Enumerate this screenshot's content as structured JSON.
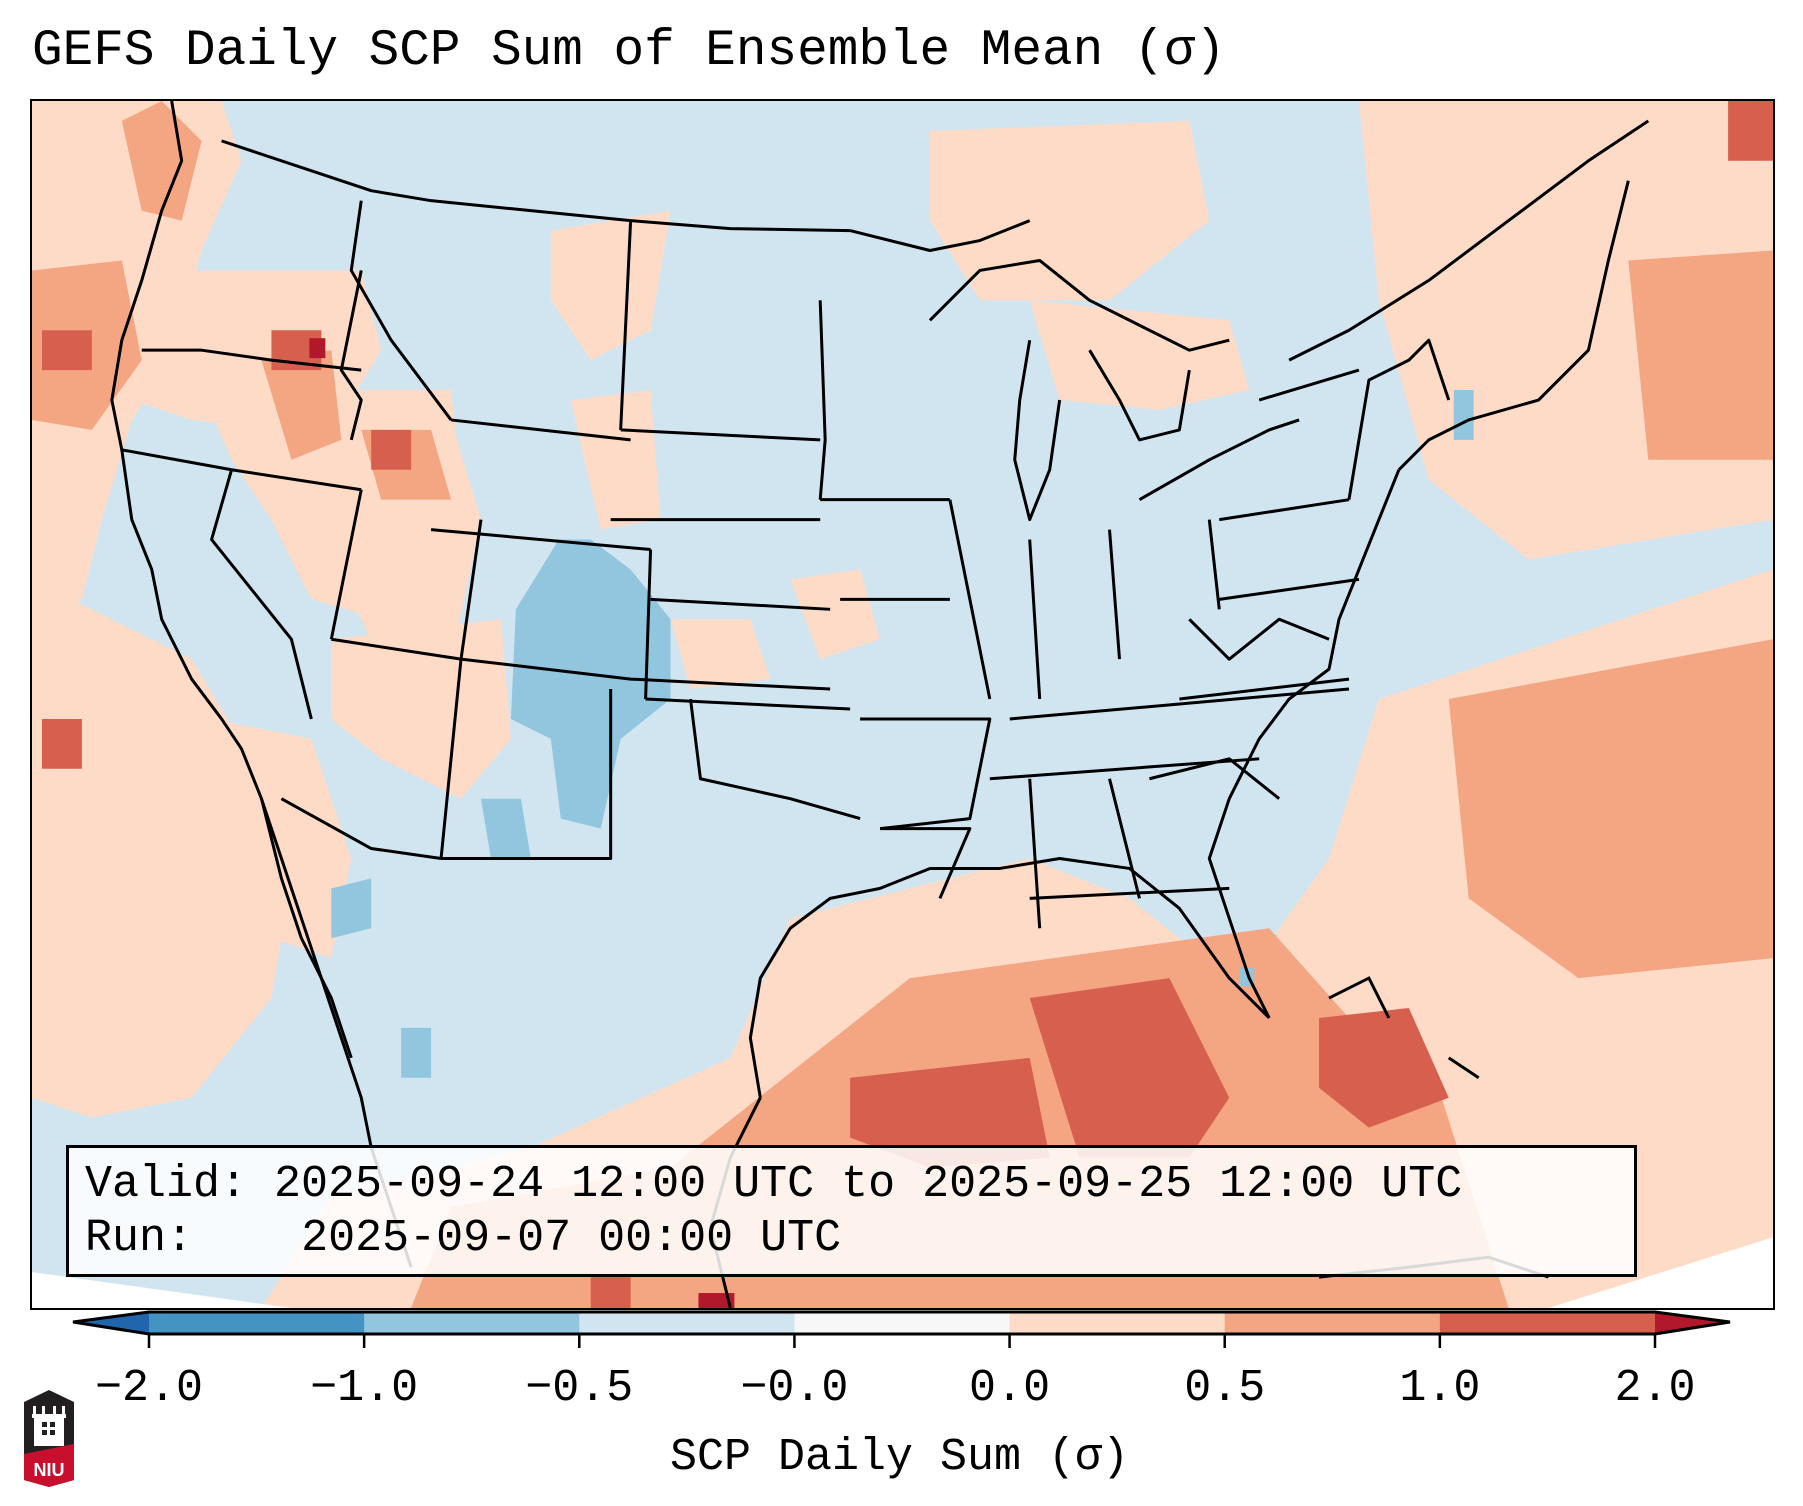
{
  "title": "GEFS Daily SCP Sum of Ensemble Mean (σ)",
  "info": {
    "valid_label": "Valid:",
    "valid_value": "2025-09-24 12:00 UTC to 2025-09-25 12:00 UTC",
    "run_label": "Run:",
    "run_value": "2025-09-07 00:00 UTC"
  },
  "colorbar": {
    "label": "SCP Daily Sum (σ)",
    "ticks": [
      "−2.0",
      "−1.0",
      "−0.5",
      "−0.0",
      "0.0",
      "0.5",
      "1.0",
      "2.0"
    ],
    "bins": [
      {
        "from": "-2.0",
        "to": "-1.0",
        "color": "#4393c3"
      },
      {
        "from": "-1.0",
        "to": "-0.5",
        "color": "#92c5de"
      },
      {
        "from": "-0.5",
        "to": "-0.0",
        "color": "#d1e5f0"
      },
      {
        "from": "-0.0",
        "to": "0.0",
        "color": "#f7f7f7"
      },
      {
        "from": "0.0",
        "to": "0.5",
        "color": "#fddbc7"
      },
      {
        "from": "0.5",
        "to": "1.0",
        "color": "#f4a582"
      },
      {
        "from": "1.0",
        "to": "2.0",
        "color": "#d6604d"
      }
    ],
    "under_color": "#2166ac",
    "over_color": "#b2182b"
  },
  "logo": {
    "text": "NIU",
    "name": "niu-logo"
  },
  "map": {
    "region": "Continental United States",
    "background_category": "-0.5 to -0.0",
    "features": [
      {
        "name": "colorado-negative-anomaly",
        "category": "-1.0 to -0.5"
      },
      {
        "name": "gulf-of-mexico-positive-anomaly",
        "category": "1.0 to 2.0"
      },
      {
        "name": "atlantic-positive-anomaly",
        "category": "0.5 to 1.0"
      },
      {
        "name": "pacific-positive-anomaly",
        "category": "0.0 to 0.5"
      },
      {
        "name": "idaho-maximum",
        "category": ">2.0"
      }
    ]
  }
}
